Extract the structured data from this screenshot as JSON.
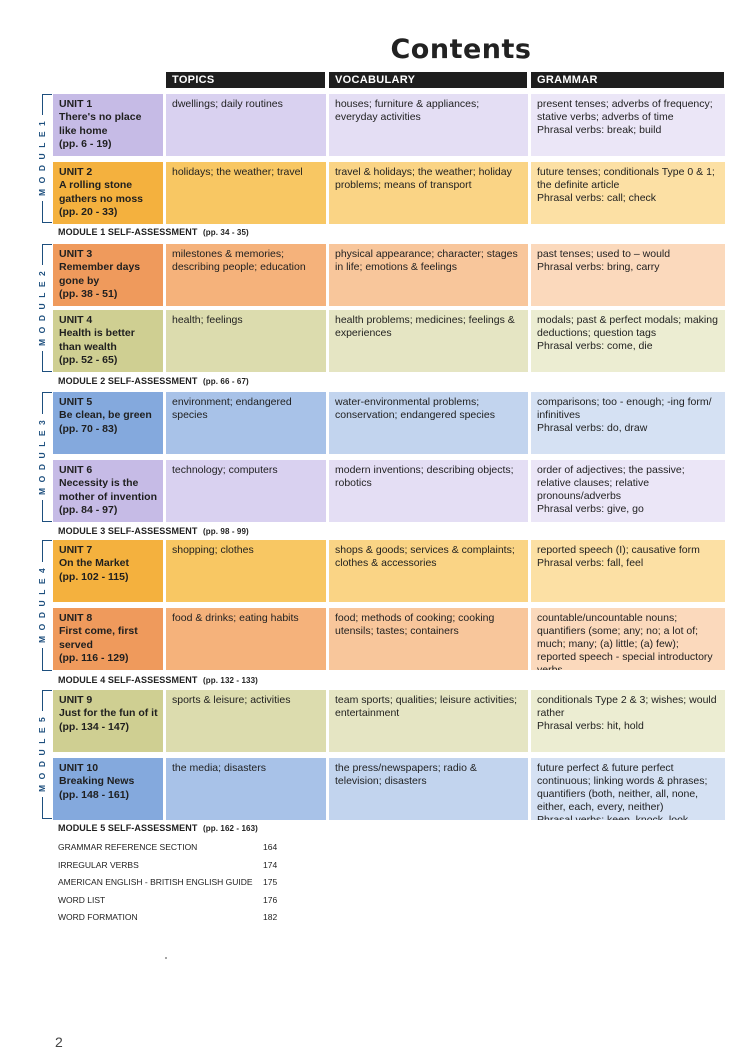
{
  "title": "Contents",
  "columns": [
    "TOPICS",
    "VOCABULARY",
    "GRAMMAR"
  ],
  "modules": [
    {
      "label": "M O D U L E  1",
      "color": "#1d4f7e"
    },
    {
      "label": "M O D U L E  2",
      "color": "#1d4f7e"
    },
    {
      "label": "M O D U L E  3",
      "color": "#1d4f7e"
    },
    {
      "label": "M O D U L E  4",
      "color": "#1d4f7e"
    },
    {
      "label": "M O D U L E  5",
      "color": "#1d4f7e"
    }
  ],
  "units": [
    {
      "unit": "UNIT 1",
      "title": "There's no place like home",
      "pages": "(pp. 6 - 19)",
      "topics": "dwellings; daily routines",
      "vocabulary": "houses; furniture & appliances; everyday activities",
      "grammar": "present tenses; adverbs of frequency; stative verbs; adverbs of time\nPhrasal verbs: break; build",
      "color": "purple"
    },
    {
      "unit": "UNIT 2",
      "title": "A rolling stone gathers no moss",
      "pages": "(pp. 20 - 33)",
      "topics": "holidays; the weather; travel",
      "vocabulary": "travel & holidays; the weather; holiday problems; means of transport",
      "grammar": "future tenses; conditionals Type 0 & 1; the definite article\nPhrasal verbs: call; check",
      "color": "orange"
    },
    {
      "unit": "UNIT 3",
      "title": "Remember days gone by",
      "pages": "(pp. 38 - 51)",
      "topics": "milestones & memories; describing people; education",
      "vocabulary": "physical appearance; character; stages in life; emotions & feelings",
      "grammar": "past tenses; used to – would\nPhrasal verbs: bring, carry",
      "color": "salmon"
    },
    {
      "unit": "UNIT 4",
      "title": "Health is better than wealth",
      "pages": "(pp. 52 - 65)",
      "topics": "health; feelings",
      "vocabulary": "health problems; medicines; feelings & experiences",
      "grammar": "modals; past & perfect modals; making deductions; question tags\nPhrasal verbs: come, die",
      "color": "olive"
    },
    {
      "unit": "UNIT 5",
      "title": "Be clean, be green",
      "pages": "(pp. 70 - 83)",
      "topics": "environment; endangered species",
      "vocabulary": "water-environmental problems; conservation; endangered species",
      "grammar": "comparisons; too - enough; -ing form/ infinitives\nPhrasal verbs: do, draw",
      "color": "blue"
    },
    {
      "unit": "UNIT 6",
      "title": "Necessity is the mother of invention",
      "pages": "(pp. 84 - 97)",
      "topics": "technology; computers",
      "vocabulary": "modern inventions; describing objects; robotics",
      "grammar": "order of adjectives; the passive; relative clauses; relative pronouns/adverbs\nPhrasal verbs: give, go",
      "color": "purple"
    },
    {
      "unit": "UNIT 7",
      "title": "On the Market",
      "pages": "(pp. 102 - 115)",
      "topics": "shopping; clothes",
      "vocabulary": "shops & goods; services & complaints; clothes & accessories",
      "grammar": "reported speech (I); causative form\nPhrasal verbs: fall, feel",
      "color": "orange"
    },
    {
      "unit": "UNIT 8",
      "title": "First come, first served",
      "pages": "(pp. 116 - 129)",
      "topics": "food & drinks; eating habits",
      "vocabulary": "food; methods of cooking; cooking utensils; tastes; containers",
      "grammar": "countable/uncountable nouns; quantifiers (some; any; no; a lot of; much; many; (a) little; (a) few); reported speech - special introductory verbs\nPhrasal verbs: get",
      "color": "salmon"
    },
    {
      "unit": "UNIT 9",
      "title": "Just for the fun of it",
      "pages": "(pp. 134 - 147)",
      "topics": "sports & leisure; activities",
      "vocabulary": "team sports; qualities; leisure activities; entertainment",
      "grammar": "conditionals Type 2 & 3; wishes; would rather\nPhrasal verbs: hit, hold",
      "color": "olive"
    },
    {
      "unit": "UNIT 10",
      "title": "Breaking News",
      "pages": "(pp. 148 - 161)",
      "topics": "the media; disasters",
      "vocabulary": "the press/newspapers; radio & television; disasters",
      "grammar": "future perfect & future perfect continuous; linking words & phrases; quantifiers (both, neither, all, none, either, each, every, neither)\nPhrasal verbs: keep, knock, look",
      "color": "blue"
    }
  ],
  "self_assessments": [
    {
      "label": "MODULE 1 SELF-ASSESSMENT",
      "pages": "(pp. 34 - 35)"
    },
    {
      "label": "MODULE 2 SELF-ASSESSMENT",
      "pages": "(pp. 66 - 67)"
    },
    {
      "label": "MODULE 3 SELF-ASSESSMENT",
      "pages": "(pp. 98 - 99)"
    },
    {
      "label": "MODULE 4 SELF-ASSESSMENT",
      "pages": "(pp. 132 - 133)"
    },
    {
      "label": "MODULE 5 SELF-ASSESSMENT",
      "pages": "(pp. 162 - 163)"
    }
  ],
  "references": [
    {
      "label": "GRAMMAR REFERENCE SECTION",
      "page": "164"
    },
    {
      "label": "IRREGULAR VERBS",
      "page": "174"
    },
    {
      "label": "AMERICAN ENGLISH - BRITISH ENGLISH GUIDE",
      "page": "175"
    },
    {
      "label": "WORD LIST",
      "page": "176"
    },
    {
      "label": "WORD FORMATION",
      "page": "182"
    }
  ],
  "page_number": "2",
  "palette": {
    "purple": [
      "#c6bbe6",
      "#d9d1f0",
      "#e4def4",
      "#ebe6f7"
    ],
    "orange": [
      "#f4b13e",
      "#f8c763",
      "#fad485",
      "#fce0a4"
    ],
    "salmon": [
      "#ef9a5c",
      "#f5b27b",
      "#f8c69b",
      "#fbd9bc"
    ],
    "olive": [
      "#cfcf92",
      "#dcdcae",
      "#e5e5c3",
      "#ecedd2"
    ],
    "blue": [
      "#84a9dd",
      "#a8c2e8",
      "#c2d4ee",
      "#d5e1f3"
    ]
  }
}
